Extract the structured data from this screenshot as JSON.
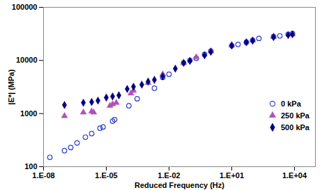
{
  "chart_data": {
    "type": "scatter",
    "xlabel": "Reduced Frequency (Hz)",
    "ylabel": "|E*| (MPa)",
    "log": true,
    "grid": false,
    "legend": "right",
    "xlim": [
      1e-08,
      100000.0
    ],
    "ylim": [
      100,
      100000
    ],
    "xticks": [
      {
        "value": 1e-08,
        "label": "1.E-08"
      },
      {
        "value": 1e-05,
        "label": "1.E-05"
      },
      {
        "value": 0.01,
        "label": "1.E-02"
      },
      {
        "value": 10,
        "label": "1.E+01"
      },
      {
        "value": 10000,
        "label": "1.E+04"
      }
    ],
    "yticks": [
      100,
      1000,
      10000,
      100000
    ],
    "series": [
      {
        "name": "0 kPa",
        "color": "#3344cc",
        "marker": "open-circle",
        "x": [
          2e-08,
          1e-07,
          2e-07,
          4e-07,
          1e-06,
          2e-06,
          5e-06,
          7e-06,
          2e-05,
          2.5e-05,
          0.00012,
          0.0003,
          0.002,
          0.005,
          0.01,
          0.05,
          0.1,
          0.2,
          0.5,
          1,
          10,
          20,
          50,
          100,
          200,
          1000,
          2000,
          5000,
          8000
        ],
        "values": [
          150,
          200,
          230,
          280,
          360,
          420,
          530,
          560,
          720,
          770,
          1400,
          1900,
          3000,
          4800,
          5500,
          9000,
          10000,
          11000,
          13000,
          15000,
          19000,
          20000,
          22000,
          24000,
          26000,
          28000,
          29000,
          31000,
          32000
        ]
      },
      {
        "name": "250 kPa",
        "color": "#b050b8",
        "marker": "triangle",
        "x": [
          1e-07,
          8e-07,
          2e-06,
          2.5e-06,
          1.5e-05,
          2e-05,
          3e-05,
          0.00015,
          0.0002,
          0.001,
          0.005,
          0.05,
          0.2,
          1,
          10,
          100,
          1000,
          8000
        ],
        "values": [
          900,
          1050,
          1100,
          1050,
          1400,
          1500,
          1600,
          2400,
          2700,
          3800,
          5500,
          9000,
          11500,
          15000,
          19500,
          24000,
          28000,
          31000
        ]
      },
      {
        "name": "500 kPa",
        "color": "#000080",
        "marker": "diamond",
        "x": [
          1e-07,
          8e-07,
          2e-06,
          4e-06,
          1e-05,
          2e-05,
          4e-05,
          0.0001,
          0.0002,
          0.0005,
          0.001,
          0.002,
          0.005,
          0.02,
          0.05,
          0.1,
          0.5,
          1,
          10,
          50,
          100,
          1000,
          5000,
          8000
        ],
        "values": [
          1450,
          1600,
          1650,
          1750,
          2000,
          2100,
          2200,
          2900,
          3200,
          3500,
          4000,
          4300,
          5000,
          7000,
          9000,
          9800,
          12500,
          14500,
          19000,
          22000,
          23500,
          27500,
          30000,
          31000
        ]
      }
    ]
  }
}
